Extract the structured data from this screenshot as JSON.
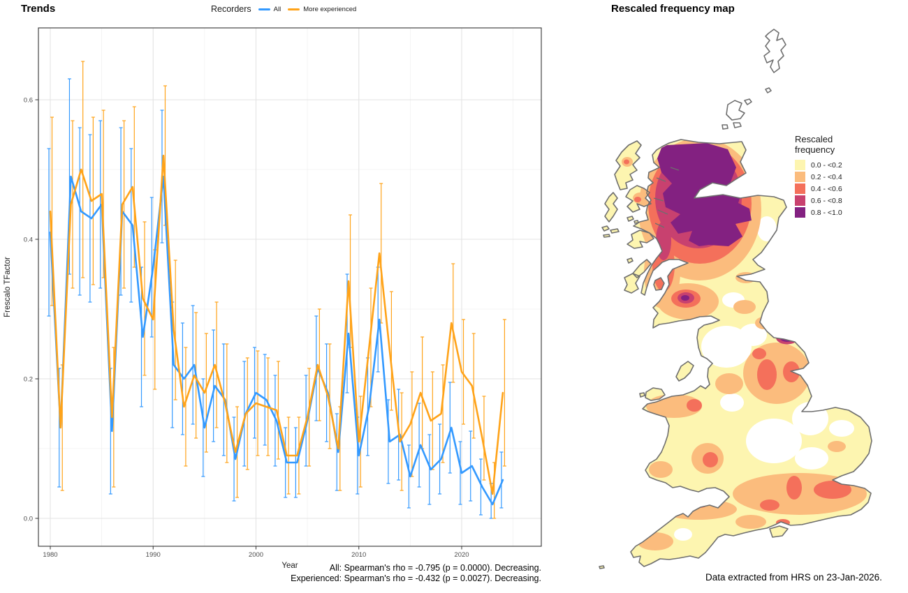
{
  "trends": {
    "title": "Trends",
    "legend_title": "Recorders",
    "x_label": "Year",
    "y_label": "Frescalo TFactor",
    "caption_line1": "All: Spearman's rho = -0.795 (p = 0.0000). Decreasing.",
    "caption_line2": "Experienced: Spearman's rho = -0.432 (p = 0.0027). Decreasing."
  },
  "chart_data": {
    "type": "line",
    "title": "Trends",
    "xlabel": "Year",
    "ylabel": "Frescalo TFactor",
    "legend_title": "Recorders",
    "legend_position": "top",
    "grid": true,
    "xticks": [
      1980,
      1990,
      2000,
      2010,
      2020
    ],
    "yticks": [
      0.0,
      0.2,
      0.4,
      0.6
    ],
    "xlim": [
      1978.8,
      2026.5
    ],
    "ylim": [
      -0.04,
      0.703
    ],
    "x": [
      1980,
      1981,
      1982,
      1983,
      1984,
      1985,
      1986,
      1987,
      1988,
      1989,
      1990,
      1991,
      1992,
      1993,
      1994,
      1995,
      1996,
      1997,
      1998,
      1999,
      2000,
      2001,
      2002,
      2003,
      2004,
      2005,
      2006,
      2007,
      2008,
      2009,
      2010,
      2011,
      2012,
      2013,
      2014,
      2015,
      2016,
      2017,
      2018,
      2019,
      2020,
      2021,
      2022,
      2023,
      2024
    ],
    "series": [
      {
        "name": "All",
        "color": "#3399FF",
        "values": [
          0.41,
          0.13,
          0.49,
          0.44,
          0.43,
          0.45,
          0.125,
          0.44,
          0.42,
          0.26,
          0.36,
          0.49,
          0.22,
          0.2,
          0.22,
          0.13,
          0.19,
          0.17,
          0.085,
          0.15,
          0.18,
          0.17,
          0.14,
          0.08,
          0.08,
          0.14,
          0.215,
          0.18,
          0.095,
          0.265,
          0.09,
          0.16,
          0.285,
          0.11,
          0.12,
          0.06,
          0.105,
          0.07,
          0.085,
          0.13,
          0.065,
          0.075,
          0.045,
          0.02,
          0.055
        ],
        "err_lo": [
          0.29,
          0.045,
          0.35,
          0.32,
          0.31,
          0.33,
          0.035,
          0.32,
          0.31,
          0.16,
          0.26,
          0.395,
          0.13,
          0.12,
          0.135,
          0.06,
          0.11,
          0.09,
          0.025,
          0.075,
          0.115,
          0.105,
          0.075,
          0.03,
          0.03,
          0.075,
          0.14,
          0.11,
          0.04,
          0.18,
          0.035,
          0.09,
          0.21,
          0.05,
          0.055,
          0.015,
          0.045,
          0.02,
          0.035,
          0.065,
          0.02,
          0.025,
          0.005,
          0.0,
          0.015
        ],
        "err_hi": [
          0.53,
          0.215,
          0.63,
          0.56,
          0.55,
          0.57,
          0.215,
          0.56,
          0.53,
          0.36,
          0.46,
          0.585,
          0.31,
          0.28,
          0.305,
          0.2,
          0.27,
          0.25,
          0.145,
          0.225,
          0.245,
          0.235,
          0.205,
          0.13,
          0.13,
          0.205,
          0.29,
          0.25,
          0.15,
          0.35,
          0.145,
          0.23,
          0.36,
          0.17,
          0.185,
          0.105,
          0.165,
          0.12,
          0.135,
          0.195,
          0.11,
          0.125,
          0.085,
          0.05,
          0.095
        ]
      },
      {
        "name": "More experienced",
        "color": "#FFA319",
        "values": [
          0.44,
          0.13,
          0.45,
          0.5,
          0.455,
          0.465,
          0.145,
          0.45,
          0.475,
          0.315,
          0.285,
          0.52,
          0.27,
          0.16,
          0.205,
          0.18,
          0.22,
          0.165,
          0.095,
          0.15,
          0.165,
          0.16,
          0.155,
          0.09,
          0.09,
          0.145,
          0.22,
          0.175,
          0.1,
          0.34,
          0.11,
          0.245,
          0.38,
          0.24,
          0.11,
          0.135,
          0.18,
          0.14,
          0.15,
          0.28,
          0.21,
          0.19,
          0.115,
          0.035,
          0.18
        ],
        "err_lo": [
          0.305,
          0.04,
          0.33,
          0.345,
          0.335,
          0.345,
          0.045,
          0.33,
          0.36,
          0.205,
          0.185,
          0.42,
          0.17,
          0.075,
          0.115,
          0.095,
          0.13,
          0.08,
          0.03,
          0.07,
          0.09,
          0.09,
          0.085,
          0.035,
          0.035,
          0.075,
          0.14,
          0.1,
          0.04,
          0.245,
          0.045,
          0.16,
          0.28,
          0.155,
          0.04,
          0.06,
          0.1,
          0.07,
          0.08,
          0.195,
          0.135,
          0.115,
          0.055,
          0.0,
          0.075
        ],
        "err_hi": [
          0.575,
          0.22,
          0.57,
          0.655,
          0.575,
          0.585,
          0.245,
          0.57,
          0.59,
          0.425,
          0.385,
          0.62,
          0.37,
          0.245,
          0.295,
          0.265,
          0.31,
          0.25,
          0.16,
          0.23,
          0.24,
          0.23,
          0.225,
          0.145,
          0.145,
          0.215,
          0.3,
          0.25,
          0.16,
          0.435,
          0.175,
          0.33,
          0.48,
          0.325,
          0.18,
          0.21,
          0.26,
          0.21,
          0.22,
          0.365,
          0.285,
          0.265,
          0.175,
          0.08,
          0.285
        ]
      }
    ]
  },
  "map": {
    "title": "Rescaled frequency map",
    "caption": "Data extracted from HRS on 23-Jan-2026.",
    "coast_color": "#6E6E6E",
    "legend": {
      "title": "Rescaled\nfrequency",
      "entries": [
        {
          "label": "0.0 - <0.2",
          "color": "#FDF5B0"
        },
        {
          "label": "0.2 - <0.4",
          "color": "#FBBC7D"
        },
        {
          "label": "0.4 - <0.6",
          "color": "#F4705B"
        },
        {
          "label": "0.6 - <0.8",
          "color": "#C8416F"
        },
        {
          "label": "0.8 - <1.0",
          "color": "#832181"
        }
      ]
    }
  }
}
